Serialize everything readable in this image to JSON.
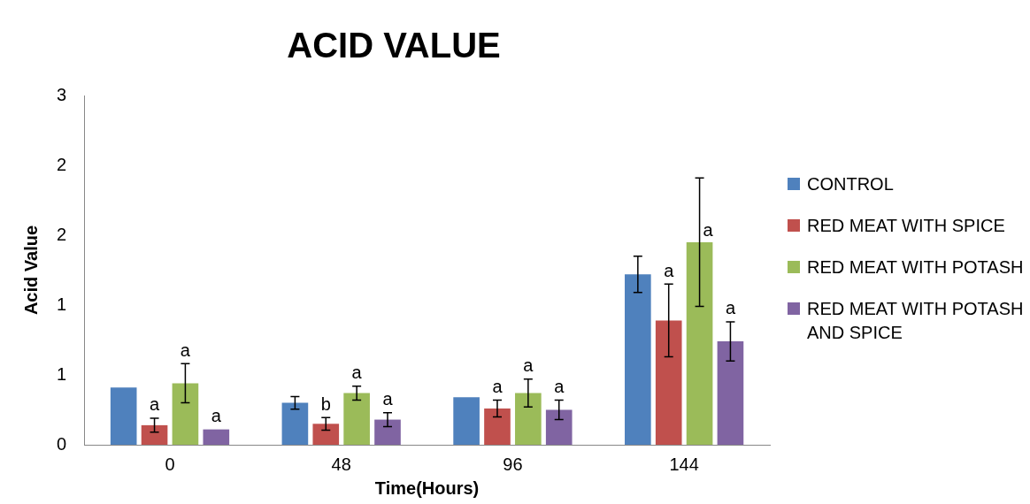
{
  "chart_data": {
    "type": "bar",
    "title": "ACID VALUE",
    "xlabel": "Time(Hours)",
    "ylabel": "Acid Value",
    "categories": [
      "0",
      "48",
      "96",
      "144"
    ],
    "series": [
      {
        "name": "CONTROL",
        "color": "#4f81bd",
        "values": [
          0.41,
          0.3,
          0.34,
          1.22
        ],
        "errors": [
          null,
          0.045,
          null,
          0.13
        ]
      },
      {
        "name": "RED MEAT WITH SPICE",
        "color": "#c0504d",
        "values": [
          0.14,
          0.15,
          0.26,
          0.89
        ],
        "errors": [
          0.05,
          0.045,
          0.06,
          0.26
        ],
        "value_labels": [
          "a",
          "b",
          "a",
          "a"
        ]
      },
      {
        "name": "RED MEAT WITH POTASH",
        "color": "#9bbb59",
        "values": [
          0.44,
          0.37,
          0.37,
          1.45
        ],
        "errors": [
          0.14,
          0.05,
          0.1,
          0.46
        ],
        "value_labels": [
          "a",
          "a",
          "a",
          "a"
        ]
      },
      {
        "name": "RED MEAT WITH POTASH AND SPICE",
        "color": "#8064a2",
        "values": [
          0.11,
          0.18,
          0.25,
          0.74
        ],
        "errors": [
          null,
          0.05,
          0.07,
          0.14
        ],
        "value_labels": [
          "a",
          "a",
          "a",
          "a"
        ]
      }
    ],
    "ylim": [
      0,
      2.5
    ],
    "yticks": [
      0,
      {
        "value": 0.5,
        "label": "1"
      },
      {
        "value": 1,
        "label": "1"
      },
      {
        "value": 1.5,
        "label": "2"
      },
      {
        "value": 2,
        "label": "2"
      },
      {
        "value": 2.5,
        "label": "3"
      }
    ],
    "grid": false,
    "legend": "right"
  }
}
